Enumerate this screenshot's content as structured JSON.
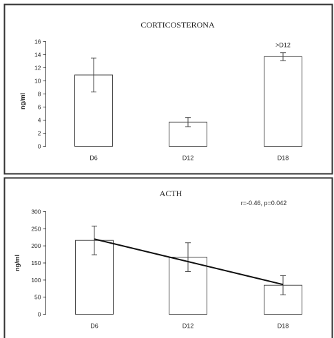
{
  "chart_data": [
    {
      "type": "bar",
      "title": "CORTICOSTERONA",
      "xlabel": "",
      "ylabel": "ng/ml",
      "categories": [
        "D6",
        "D12",
        "D18"
      ],
      "values": [
        10.9,
        3.7,
        13.7
      ],
      "error": [
        2.6,
        0.7,
        0.6
      ],
      "ylim": [
        0,
        16
      ],
      "yticks": [
        0,
        2,
        4,
        6,
        8,
        10,
        12,
        14,
        16
      ],
      "annotations": [
        {
          "category": "D18",
          "text": ">D12"
        }
      ],
      "grid": false,
      "legend": "none"
    },
    {
      "type": "bar",
      "title": "ACTH",
      "xlabel": "",
      "ylabel": "ng/ml",
      "categories": [
        "D6",
        "D12",
        "D18"
      ],
      "values": [
        216,
        167,
        85
      ],
      "error": [
        42,
        42,
        28
      ],
      "ylim": [
        0,
        300
      ],
      "yticks": [
        0,
        50,
        100,
        150,
        200,
        250,
        300
      ],
      "trendline": {
        "start": 220,
        "end": 87
      },
      "annotations": [
        {
          "position": "top-right",
          "text": "r=-0.46, p=0.042"
        }
      ],
      "grid": false,
      "legend": "none"
    }
  ],
  "colors": {
    "frame": "#333333",
    "bar_fill": "#ffffff",
    "bar_stroke": "#444444",
    "text": "#222222"
  }
}
